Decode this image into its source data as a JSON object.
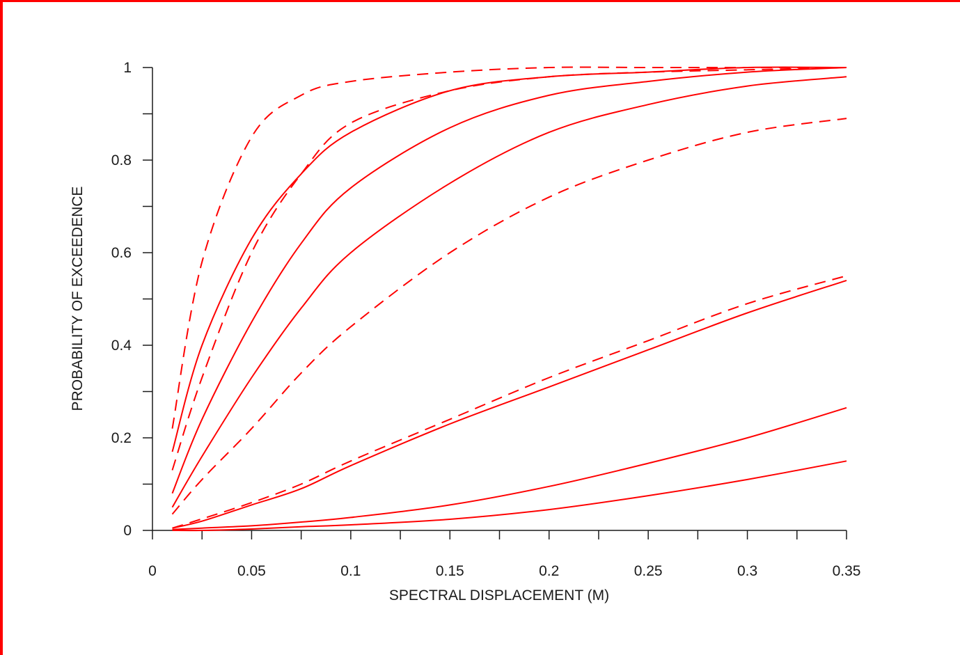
{
  "chart_data": {
    "type": "line",
    "title": "",
    "xlabel": "SPECTRAL DISPLACEMENT (M)",
    "ylabel": "PROBABILITY OF EXCEEDENCE",
    "xlim": [
      0,
      0.35
    ],
    "ylim": [
      0,
      1
    ],
    "x_ticks": [
      "0",
      "0.05",
      "0.1",
      "0.15",
      "0.2",
      "0.25",
      "0.3",
      "0.35"
    ],
    "y_ticks": [
      "0",
      "0.2",
      "0.4",
      "0.6",
      "0.8",
      "1"
    ],
    "x_tick_values": [
      0,
      0.05,
      0.1,
      0.15,
      0.2,
      0.25,
      0.3,
      0.35
    ],
    "y_tick_values": [
      0,
      0.2,
      0.4,
      0.6,
      0.8,
      1
    ],
    "grid": false,
    "legend": "none",
    "line_color": "#ff0000",
    "x": [
      0.01,
      0.025,
      0.05,
      0.075,
      0.1,
      0.15,
      0.2,
      0.25,
      0.3,
      0.35
    ],
    "series": [
      {
        "style": "dashed",
        "values": [
          0.22,
          0.58,
          0.85,
          0.94,
          0.97,
          0.99,
          1.0,
          1.0,
          1.0,
          1.0
        ]
      },
      {
        "style": "solid",
        "values": [
          0.17,
          0.4,
          0.63,
          0.77,
          0.86,
          0.95,
          0.98,
          0.99,
          1.0,
          1.0
        ]
      },
      {
        "style": "dashed",
        "values": [
          0.13,
          0.33,
          0.6,
          0.77,
          0.88,
          0.95,
          0.98,
          0.99,
          0.995,
          1.0
        ]
      },
      {
        "style": "solid",
        "values": [
          0.08,
          0.24,
          0.45,
          0.62,
          0.74,
          0.87,
          0.94,
          0.97,
          0.99,
          1.0
        ]
      },
      {
        "style": "solid",
        "values": [
          0.05,
          0.16,
          0.33,
          0.48,
          0.6,
          0.75,
          0.86,
          0.92,
          0.96,
          0.98
        ]
      },
      {
        "style": "dashed",
        "values": [
          0.035,
          0.11,
          0.22,
          0.34,
          0.44,
          0.6,
          0.72,
          0.8,
          0.86,
          0.89
        ]
      },
      {
        "style": "dashed",
        "values": [
          0.005,
          0.025,
          0.06,
          0.1,
          0.15,
          0.24,
          0.33,
          0.41,
          0.49,
          0.55
        ]
      },
      {
        "style": "solid",
        "values": [
          0.005,
          0.02,
          0.055,
          0.09,
          0.14,
          0.23,
          0.31,
          0.39,
          0.47,
          0.54
        ]
      },
      {
        "style": "solid",
        "values": [
          0.002,
          0.005,
          0.01,
          0.018,
          0.028,
          0.055,
          0.095,
          0.145,
          0.2,
          0.265
        ]
      },
      {
        "style": "solid",
        "values": [
          0.0,
          0.0,
          0.003,
          0.008,
          0.012,
          0.024,
          0.045,
          0.075,
          0.11,
          0.15
        ]
      }
    ]
  }
}
